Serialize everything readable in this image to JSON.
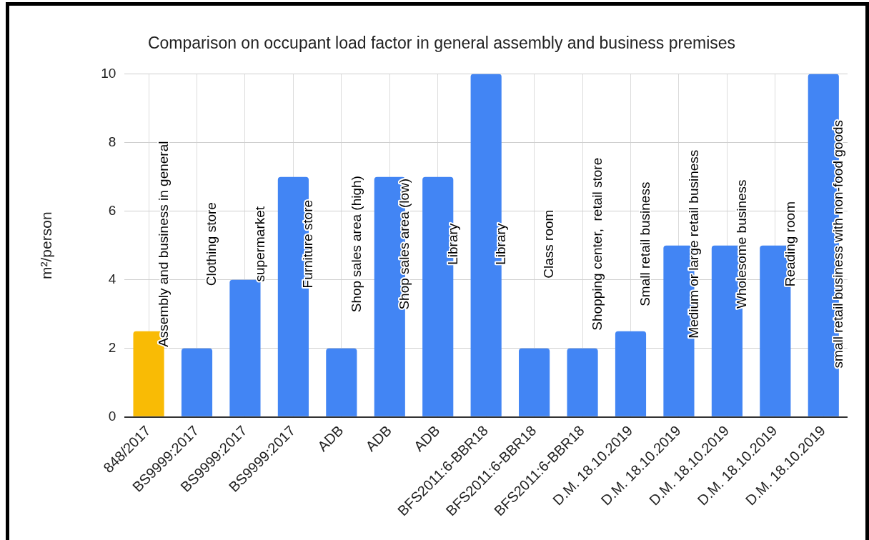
{
  "chart_data": {
    "type": "bar",
    "title": "Comparison on occupant load factor in general assembly and business premises",
    "ylabel": "m²/person",
    "categories": [
      "848/2017",
      "BS9999:2017",
      "BS9999:2017",
      "BS9999:2017",
      "ADB",
      "ADB",
      "ADB",
      "BFS2011:6-BBR18",
      "BFS2011:6-BBR18",
      "BFS2011:6-BBR18",
      "D.M. 18.10.2019",
      "D.M. 18.10.2019",
      "D.M. 18.10.2019",
      "D.M. 18.10.2019",
      "D.M. 18.10.2019"
    ],
    "values": [
      2.5,
      2,
      4,
      7,
      2,
      7,
      7,
      10,
      2,
      2,
      2.5,
      5,
      5,
      5,
      10
    ],
    "colors": [
      "#f9bb05",
      "#4285f4",
      "#4285f4",
      "#4285f4",
      "#4285f4",
      "#4285f4",
      "#4285f4",
      "#4285f4",
      "#4285f4",
      "#4285f4",
      "#4285f4",
      "#4285f4",
      "#4285f4",
      "#4285f4",
      "#4285f4"
    ],
    "ylim": [
      0,
      10
    ],
    "yticks": [
      0,
      2,
      4,
      6,
      8,
      10
    ],
    "grid": true,
    "legend": false,
    "annotations": [
      "Assembly and business in general",
      "Clothing store",
      "supermarket",
      "Furniture store",
      "Shop sales area (high)",
      "Shop sales area (low)",
      "Library",
      "Library",
      "Class room",
      "Shopping center,  retail store",
      "Small retail business",
      "Medium or large retail business",
      "Wholesome business",
      "Reading room",
      "small retail business with non-food goods"
    ]
  }
}
